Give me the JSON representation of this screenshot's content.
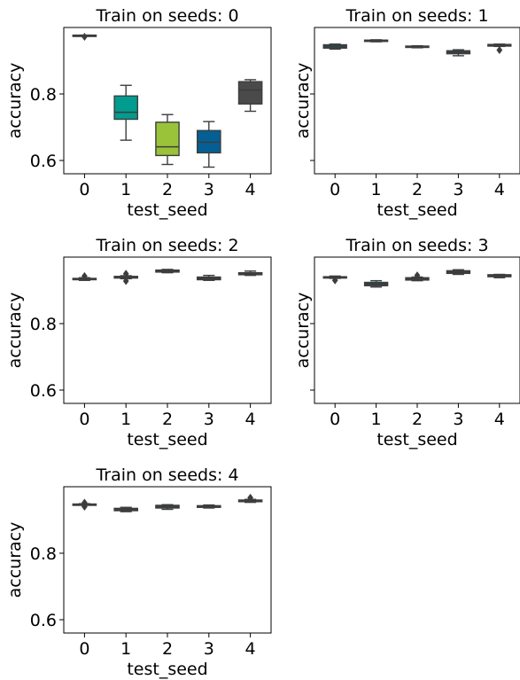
{
  "chart_data": [
    {
      "type": "box",
      "title": "Train on seeds: 0",
      "xlabel": "test_seed",
      "ylabel": "accuracy",
      "categories": [
        "0",
        "1",
        "2",
        "3",
        "4"
      ],
      "ylim": [
        0.56,
        1.0
      ],
      "yticks": [
        "0.6",
        "0.8"
      ],
      "show_ytick_labels": true,
      "boxes": [
        {
          "whislo": 0.975,
          "q1": 0.975,
          "med": 0.976,
          "q3": 0.977,
          "whishi": 0.977,
          "fliers": [
            0.972
          ],
          "color": "#1d4a55"
        },
        {
          "whislo": 0.661,
          "q1": 0.724,
          "med": 0.745,
          "q3": 0.794,
          "whishi": 0.826,
          "fliers": [],
          "color": "#009c8f"
        },
        {
          "whislo": 0.588,
          "q1": 0.615,
          "med": 0.641,
          "q3": 0.715,
          "whishi": 0.738,
          "fliers": [],
          "color": "#9ac33a"
        },
        {
          "whislo": 0.58,
          "q1": 0.623,
          "med": 0.655,
          "q3": 0.69,
          "whishi": 0.717,
          "fliers": [],
          "color": "#045f95"
        },
        {
          "whislo": 0.748,
          "q1": 0.77,
          "med": 0.812,
          "q3": 0.837,
          "whishi": 0.843,
          "fliers": [],
          "color": "#4a4a4a"
        }
      ]
    },
    {
      "type": "box",
      "title": "Train on seeds: 1",
      "xlabel": "test_seed",
      "ylabel": "accuracy",
      "categories": [
        "0",
        "1",
        "2",
        "3",
        "4"
      ],
      "ylim": [
        0.56,
        1.0
      ],
      "yticks": [
        "0.6",
        "0.8"
      ],
      "show_ytick_labels": false,
      "boxes": [
        {
          "whislo": 0.935,
          "q1": 0.938,
          "med": 0.944,
          "q3": 0.948,
          "whishi": 0.95,
          "fliers": [],
          "color": "#1d4a55"
        },
        {
          "whislo": 0.957,
          "q1": 0.958,
          "med": 0.96,
          "q3": 0.962,
          "whishi": 0.963,
          "fliers": [],
          "color": "#1d4a55"
        },
        {
          "whislo": 0.939,
          "q1": 0.94,
          "med": 0.942,
          "q3": 0.944,
          "whishi": 0.945,
          "fliers": [],
          "color": "#1d4a55"
        },
        {
          "whislo": 0.915,
          "q1": 0.921,
          "med": 0.926,
          "q3": 0.93,
          "whishi": 0.933,
          "fliers": [],
          "color": "#1d4a55"
        },
        {
          "whislo": 0.943,
          "q1": 0.944,
          "med": 0.946,
          "q3": 0.949,
          "whishi": 0.95,
          "fliers": [
            0.932
          ],
          "color": "#1d4a55"
        }
      ]
    },
    {
      "type": "box",
      "title": "Train on seeds: 2",
      "xlabel": "test_seed",
      "ylabel": "accuracy",
      "categories": [
        "0",
        "1",
        "2",
        "3",
        "4"
      ],
      "ylim": [
        0.56,
        1.0
      ],
      "yticks": [
        "0.6",
        "0.8"
      ],
      "show_ytick_labels": true,
      "boxes": [
        {
          "whislo": 0.93,
          "q1": 0.932,
          "med": 0.934,
          "q3": 0.936,
          "whishi": 0.938,
          "fliers": [
            0.943
          ],
          "color": "#1d4a55"
        },
        {
          "whislo": 0.935,
          "q1": 0.937,
          "med": 0.94,
          "q3": 0.942,
          "whishi": 0.944,
          "fliers": [
            0.928,
            0.95
          ],
          "color": "#1d4a55"
        },
        {
          "whislo": 0.953,
          "q1": 0.955,
          "med": 0.958,
          "q3": 0.961,
          "whishi": 0.963,
          "fliers": [],
          "color": "#1d4a55"
        },
        {
          "whislo": 0.93,
          "q1": 0.932,
          "med": 0.936,
          "q3": 0.94,
          "whishi": 0.945,
          "fliers": [],
          "color": "#1d4a55"
        },
        {
          "whislo": 0.945,
          "q1": 0.947,
          "med": 0.95,
          "q3": 0.953,
          "whishi": 0.958,
          "fliers": [],
          "color": "#1d4a55"
        }
      ]
    },
    {
      "type": "box",
      "title": "Train on seeds: 3",
      "xlabel": "test_seed",
      "ylabel": "accuracy",
      "categories": [
        "0",
        "1",
        "2",
        "3",
        "4"
      ],
      "ylim": [
        0.56,
        1.0
      ],
      "yticks": [
        "0.6",
        "0.8"
      ],
      "show_ytick_labels": false,
      "boxes": [
        {
          "whislo": 0.936,
          "q1": 0.937,
          "med": 0.939,
          "q3": 0.941,
          "whishi": 0.943,
          "fliers": [
            0.93
          ],
          "color": "#1d4a55"
        },
        {
          "whislo": 0.91,
          "q1": 0.914,
          "med": 0.918,
          "q3": 0.924,
          "whishi": 0.929,
          "fliers": [],
          "color": "#1d4a55"
        },
        {
          "whislo": 0.929,
          "q1": 0.931,
          "med": 0.934,
          "q3": 0.938,
          "whishi": 0.94,
          "fliers": [
            0.945
          ],
          "color": "#1d4a55"
        },
        {
          "whislo": 0.948,
          "q1": 0.951,
          "med": 0.955,
          "q3": 0.959,
          "whishi": 0.962,
          "fliers": [],
          "color": "#1d4a55"
        },
        {
          "whislo": 0.938,
          "q1": 0.941,
          "med": 0.944,
          "q3": 0.947,
          "whishi": 0.948,
          "fliers": [],
          "color": "#1d4a55"
        }
      ]
    },
    {
      "type": "box",
      "title": "Train on seeds: 4",
      "xlabel": "test_seed",
      "ylabel": "accuracy",
      "categories": [
        "0",
        "1",
        "2",
        "3",
        "4"
      ],
      "ylim": [
        0.56,
        1.0
      ],
      "yticks": [
        "0.6",
        "0.8"
      ],
      "show_ytick_labels": true,
      "boxes": [
        {
          "whislo": 0.945,
          "q1": 0.946,
          "med": 0.947,
          "q3": 0.948,
          "whishi": 0.949,
          "fliers": [
            0.94,
            0.952
          ],
          "color": "#1d4a55"
        },
        {
          "whislo": 0.925,
          "q1": 0.928,
          "med": 0.932,
          "q3": 0.935,
          "whishi": 0.938,
          "fliers": [],
          "color": "#1d4a55"
        },
        {
          "whislo": 0.932,
          "q1": 0.936,
          "med": 0.94,
          "q3": 0.944,
          "whishi": 0.946,
          "fliers": [],
          "color": "#1d4a55"
        },
        {
          "whislo": 0.936,
          "q1": 0.938,
          "med": 0.94,
          "q3": 0.943,
          "whishi": 0.945,
          "fliers": [],
          "color": "#1d4a55"
        },
        {
          "whislo": 0.953,
          "q1": 0.955,
          "med": 0.958,
          "q3": 0.96,
          "whishi": 0.962,
          "fliers": [
            0.967
          ],
          "color": "#1d4a55"
        }
      ]
    }
  ]
}
